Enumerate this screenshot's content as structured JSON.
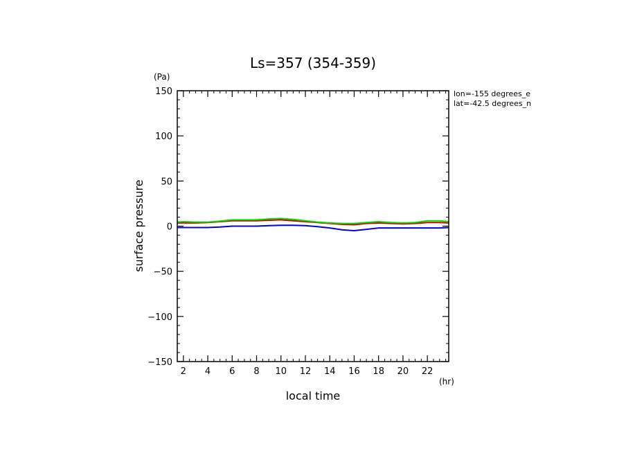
{
  "chart_data": {
    "type": "line",
    "title": "Ls=357 (354-359)",
    "xlabel": "local time",
    "ylabel": "surface pressure",
    "x_unit": "(hr)",
    "y_unit": "(Pa)",
    "xlim": [
      1.5,
      23.75
    ],
    "ylim": [
      -150,
      150
    ],
    "xticks": [
      2,
      4,
      6,
      8,
      10,
      12,
      14,
      16,
      18,
      20,
      22
    ],
    "yticks": [
      150,
      100,
      50,
      0,
      -50,
      -100,
      -150
    ],
    "grid": false,
    "annotations": [
      "lon=-155 degrees_e",
      "lat=-42.5 degrees_n"
    ],
    "x": [
      1.5,
      2,
      3,
      4,
      5,
      6,
      7,
      8,
      9,
      10,
      11,
      12,
      13,
      14,
      15,
      16,
      17,
      18,
      19,
      20,
      21,
      22,
      23,
      23.75
    ],
    "series": [
      {
        "color": "#d00000",
        "values": [
          3.5,
          3.5,
          3.5,
          4,
          5,
          6,
          6,
          6,
          6.5,
          7,
          6,
          5,
          4,
          3,
          2,
          1.5,
          3,
          3.5,
          3,
          2.5,
          3,
          4,
          4,
          3.5
        ]
      },
      {
        "color": "#00dd00",
        "values": [
          4.5,
          5,
          4.5,
          4.5,
          5.5,
          7,
          7,
          7,
          8,
          8.5,
          7.5,
          6,
          4.5,
          3.5,
          3,
          3,
          4,
          5,
          4,
          3.5,
          4,
          6,
          6,
          5
        ]
      },
      {
        "color": "#0000dd",
        "values": [
          -1.5,
          -1.5,
          -1.5,
          -1.5,
          -1,
          0,
          0,
          0,
          0.5,
          1,
          1,
          0.5,
          -0.5,
          -2,
          -4,
          -5,
          -3.5,
          -2,
          -2,
          -2,
          -2,
          -2,
          -2,
          -1.5
        ]
      }
    ]
  }
}
